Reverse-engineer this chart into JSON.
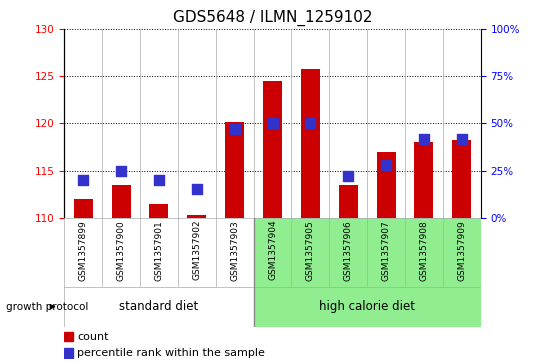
{
  "title": "GDS5648 / ILMN_1259102",
  "samples": [
    "GSM1357899",
    "GSM1357900",
    "GSM1357901",
    "GSM1357902",
    "GSM1357903",
    "GSM1357904",
    "GSM1357905",
    "GSM1357906",
    "GSM1357907",
    "GSM1357908",
    "GSM1357909"
  ],
  "counts": [
    112.0,
    113.5,
    111.5,
    110.3,
    120.2,
    124.5,
    125.8,
    113.5,
    117.0,
    118.0,
    118.2
  ],
  "percentile_ranks": [
    20,
    25,
    20,
    15,
    47,
    50,
    50,
    22,
    28,
    42,
    42
  ],
  "ylim_left": [
    110,
    130
  ],
  "ylim_right": [
    0,
    100
  ],
  "yticks_left": [
    110,
    115,
    120,
    125,
    130
  ],
  "yticks_right": [
    0,
    25,
    50,
    75,
    100
  ],
  "ytick_labels_right": [
    "0%",
    "25%",
    "50%",
    "75%",
    "100%"
  ],
  "group1_label": "standard diet",
  "group2_label": "high calorie diet",
  "group_boundary": 4.5,
  "growth_protocol_label": "growth protocol",
  "bar_color": "#cc0000",
  "marker_color": "#3333cc",
  "bar_width": 0.5,
  "marker_size": 55,
  "grid_color": "#000000",
  "background_gray": "#d3d3d3",
  "background_green": "#90ee90",
  "plot_bg": "#ffffff",
  "title_fontsize": 11,
  "tick_fontsize": 7.5,
  "sample_fontsize": 6.5,
  "label_fontsize": 8.5,
  "legend_fontsize": 8
}
